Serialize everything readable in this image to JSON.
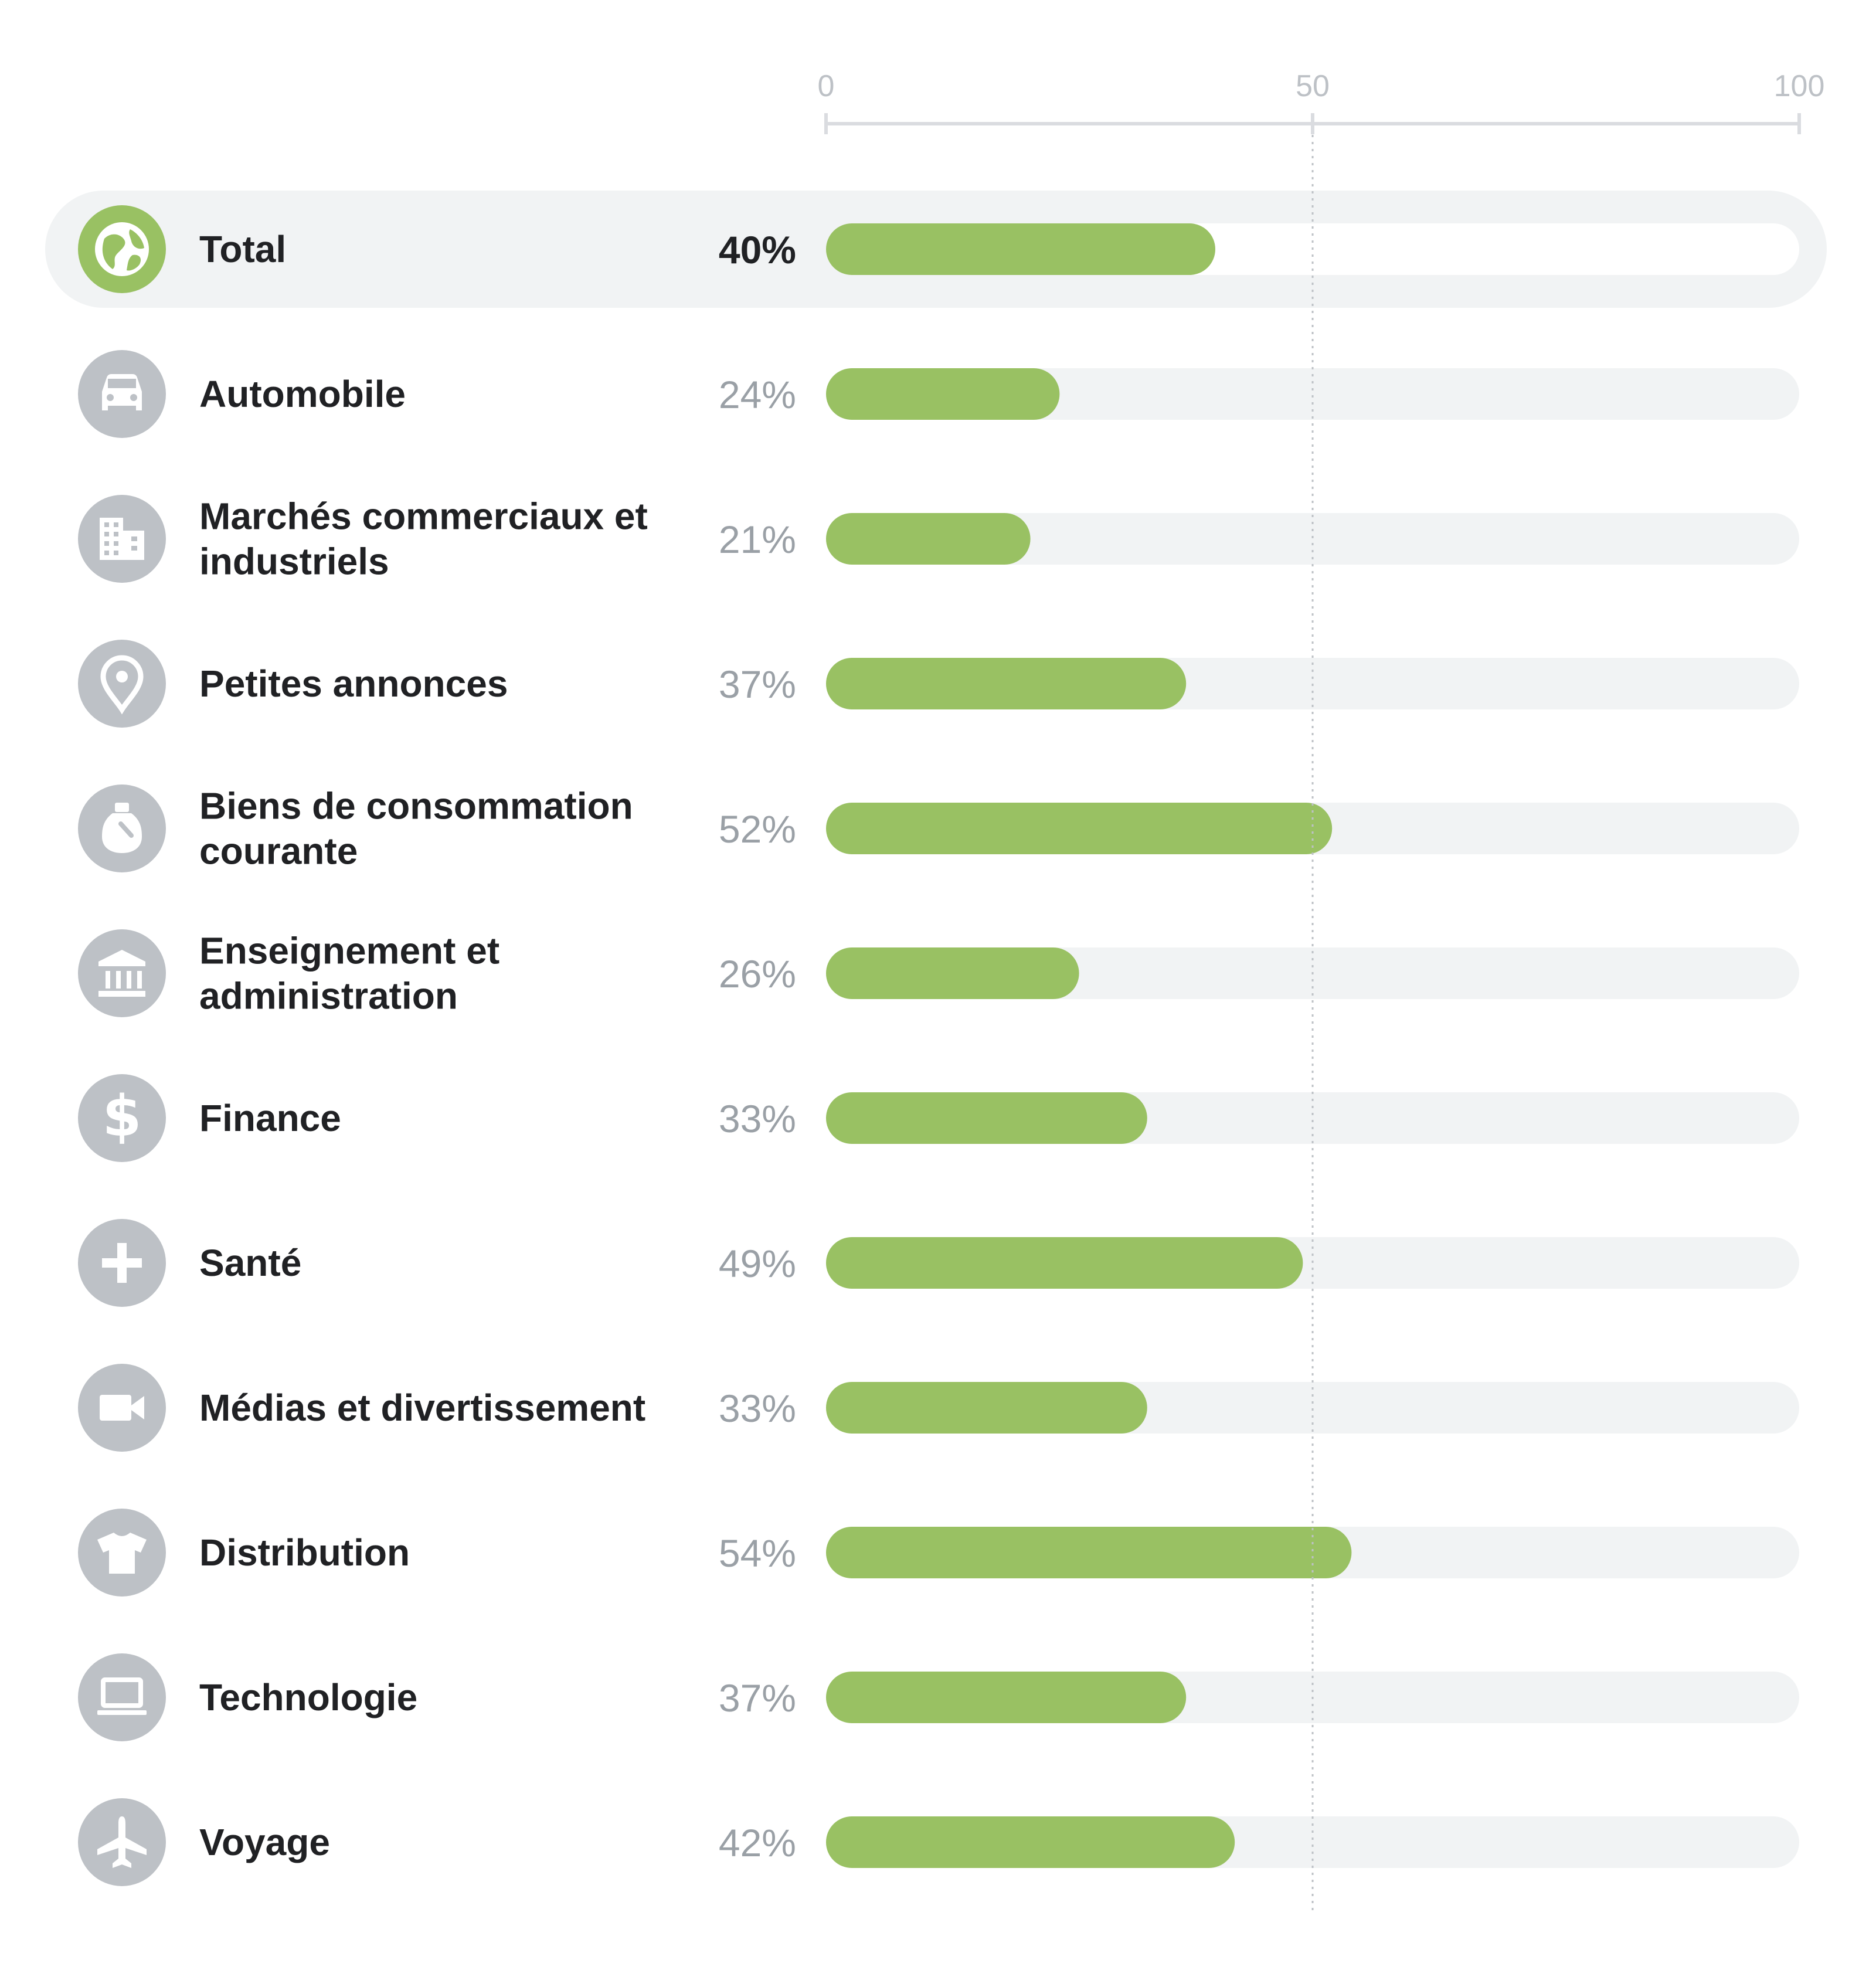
{
  "colors": {
    "bar": "#99c163",
    "track": "#f1f3f4",
    "track_highlight": "#ffffff",
    "highlight_row": "#f1f3f4",
    "icon_circle": "#bdc1c6",
    "icon_circle_total": "#99c163",
    "axis": "#dadce0",
    "text": "#202124",
    "muted_text": "#9aa0a6"
  },
  "chart_data": {
    "type": "bar",
    "orientation": "horizontal",
    "xlim": [
      0,
      100
    ],
    "x_ticks": [
      "0",
      "50",
      "100"
    ],
    "reference_line": 50,
    "grid": false,
    "legend": "none",
    "categories": [
      {
        "label": "Total",
        "value": 40,
        "value_label": "40%",
        "icon": "globe-icon",
        "highlight": true
      },
      {
        "label": "Automobile",
        "value": 24,
        "value_label": "24%",
        "icon": "car-icon"
      },
      {
        "label": "Marchés commerciaux et industriels",
        "value": 21,
        "value_label": "21%",
        "icon": "building-icon"
      },
      {
        "label": "Petites annonces",
        "value": 37,
        "value_label": "37%",
        "icon": "location-pin-icon"
      },
      {
        "label": "Biens de consommation courante",
        "value": 52,
        "value_label": "52%",
        "icon": "detergent-bottle-icon"
      },
      {
        "label": "Enseignement et administration",
        "value": 26,
        "value_label": "26%",
        "icon": "institution-icon"
      },
      {
        "label": "Finance",
        "value": 33,
        "value_label": "33%",
        "icon": "dollar-icon"
      },
      {
        "label": "Santé",
        "value": 49,
        "value_label": "49%",
        "icon": "plus-icon"
      },
      {
        "label": "Médias et divertissement",
        "value": 33,
        "value_label": "33%",
        "icon": "video-camera-icon"
      },
      {
        "label": "Distribution",
        "value": 54,
        "value_label": "54%",
        "icon": "tshirt-icon"
      },
      {
        "label": "Technologie",
        "value": 37,
        "value_label": "37%",
        "icon": "laptop-icon"
      },
      {
        "label": "Voyage",
        "value": 42,
        "value_label": "42%",
        "icon": "airplane-icon"
      }
    ]
  }
}
